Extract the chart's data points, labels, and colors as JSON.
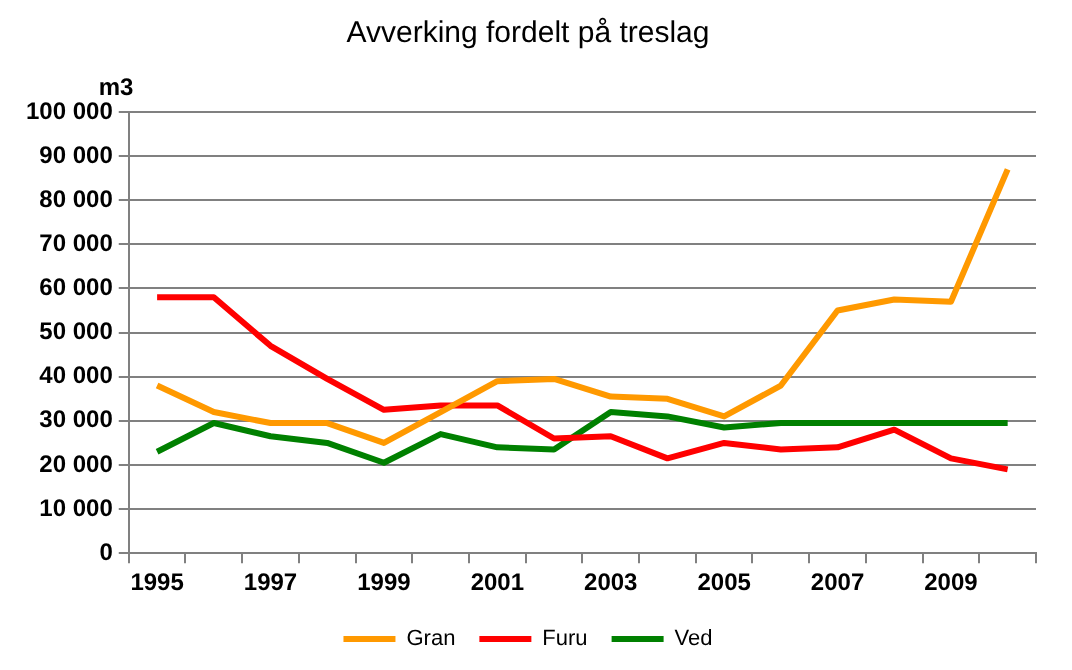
{
  "chart_data": {
    "type": "line",
    "title": "Avverking fordelt på treslag",
    "ylabel": "m3",
    "categories": [
      "1995",
      null,
      "1997",
      null,
      "1999",
      null,
      "2001",
      null,
      "2003",
      null,
      "2005",
      null,
      "2007",
      null,
      "2009",
      null
    ],
    "series": [
      {
        "name": "Gran",
        "color": "#ff9900",
        "values": [
          38000,
          32000,
          29500,
          29500,
          25000,
          32000,
          39000,
          39500,
          35500,
          35000,
          31000,
          38000,
          55000,
          57500,
          57000,
          87000
        ]
      },
      {
        "name": "Furu",
        "color": "#ff0000",
        "values": [
          58000,
          58000,
          47000,
          39500,
          32500,
          33500,
          33500,
          26000,
          26500,
          21500,
          25000,
          23500,
          24000,
          28000,
          21500,
          19000
        ]
      },
      {
        "name": "Ved",
        "color": "#008000",
        "values": [
          23000,
          29500,
          26500,
          25000,
          20500,
          27000,
          24000,
          23500,
          32000,
          31000,
          28500,
          29500,
          29500,
          29500,
          29500,
          29500
        ]
      }
    ],
    "ylim": [
      0,
      100000
    ],
    "yticks": [
      {
        "value": 0,
        "label": "0"
      },
      {
        "value": 10000,
        "label": "10 000"
      },
      {
        "value": 20000,
        "label": "20 000"
      },
      {
        "value": 30000,
        "label": "30 000"
      },
      {
        "value": 40000,
        "label": "40 000"
      },
      {
        "value": 50000,
        "label": "50 000"
      },
      {
        "value": 60000,
        "label": "60 000"
      },
      {
        "value": 70000,
        "label": "70 000"
      },
      {
        "value": 80000,
        "label": "80 000"
      },
      {
        "value": 90000,
        "label": "90 000"
      },
      {
        "value": 100000,
        "label": "100 000"
      }
    ],
    "grid": "y",
    "legend": "bottom",
    "marker": "none",
    "line_style": "solid"
  }
}
